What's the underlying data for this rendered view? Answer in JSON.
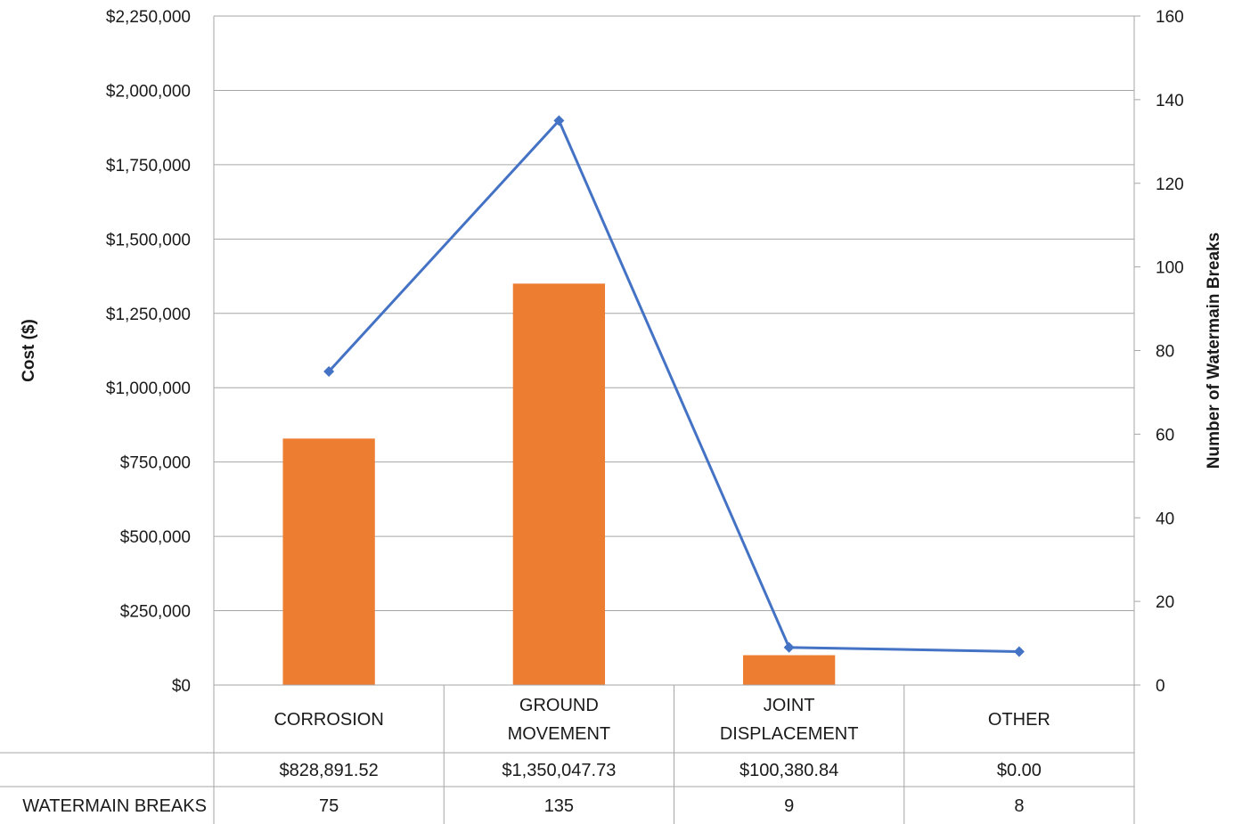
{
  "chart_data": {
    "type": "bar",
    "categories": [
      [
        "CORROSION"
      ],
      [
        "GROUND",
        "MOVEMENT"
      ],
      [
        "JOINT",
        "DISPLACEMENT"
      ],
      [
        "OTHER"
      ]
    ],
    "ylabel": "Cost ($)",
    "y2label": "Number of Watermain Breaks",
    "ylim": [
      0,
      2250000
    ],
    "y2lim": [
      0,
      160
    ],
    "y_ticks": [
      "$0",
      "$250,000",
      "$500,000",
      "$750,000",
      "$1,000,000",
      "$1,250,000",
      "$1,500,000",
      "$1,750,000",
      "$2,000,000",
      "$2,250,000"
    ],
    "y_tick_values": [
      0,
      250000,
      500000,
      750000,
      1000000,
      1250000,
      1500000,
      1750000,
      2000000,
      2250000
    ],
    "y2_ticks": [
      "0",
      "20",
      "40",
      "60",
      "80",
      "100",
      "120",
      "140",
      "160"
    ],
    "y2_tick_values": [
      0,
      20,
      40,
      60,
      80,
      100,
      120,
      140,
      160
    ],
    "grid": true,
    "series": [
      {
        "values": [
          828891.52,
          1350047.73,
          100380.84,
          0.0
        ],
        "type": "bar",
        "axis": "left",
        "color": "#ED7D31"
      },
      {
        "name": "WATERMAIN BREAKS",
        "values": [
          75,
          135,
          9,
          8
        ],
        "type": "line",
        "axis": "right",
        "marker": "diamond",
        "color": "#4472C4"
      }
    ],
    "data_table": {
      "rows": [
        {
          "label": "",
          "cells": [
            "$828,891.52",
            "$1,350,047.73",
            "$100,380.84",
            "$0.00"
          ]
        },
        {
          "label": "WATERMAIN BREAKS",
          "cells": [
            "75",
            "135",
            "9",
            "8"
          ]
        }
      ]
    }
  }
}
